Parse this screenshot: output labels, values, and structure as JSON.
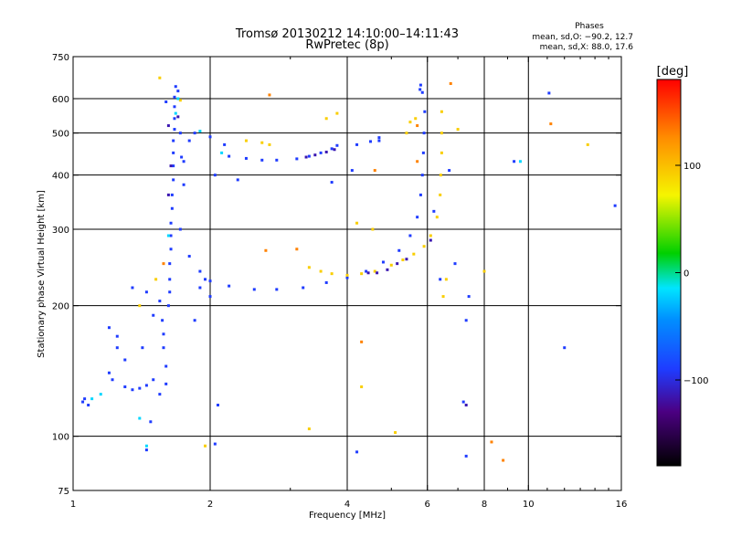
{
  "chart_data": {
    "type": "scatter",
    "title": "Tromsø 20130212 14:10:00–14:11:43",
    "subtitle": "RwPretec (8p)",
    "xlabel": "Frequency [MHz]",
    "ylabel": "Stationary phase Virtual Height [km]",
    "x_scale": "log",
    "y_scale": "log",
    "xlim": [
      1,
      16
    ],
    "ylim": [
      75,
      750
    ],
    "x_ticks": [
      1,
      2,
      4,
      6,
      8,
      10,
      16
    ],
    "x_tick_labels": [
      "1",
      "2",
      "4",
      "6",
      "8",
      "10",
      "16"
    ],
    "x_gridlines": [
      2,
      4,
      6,
      8,
      10
    ],
    "y_ticks": [
      75,
      100,
      200,
      300,
      400,
      500,
      600,
      750
    ],
    "y_tick_labels": [
      "75",
      "100",
      "200",
      "300",
      "400",
      "500",
      "600",
      "750"
    ],
    "y_gridlines": [
      100,
      200,
      300,
      400,
      500,
      600
    ],
    "grid": true,
    "stats": {
      "heading": "Phases",
      "line_o": "mean, sd,O: −90.2, 12.7",
      "line_x": "mean, sd,X:  88.0, 17.6"
    },
    "colorbar": {
      "label": "[deg]",
      "range": [
        -180,
        180
      ],
      "ticks": [
        100,
        0,
        -100
      ],
      "tick_labels": [
        "100",
        "0",
        "−100"
      ]
    },
    "series": [
      {
        "phase": -90,
        "points": [
          [
            1.55,
            125
          ],
          [
            1.6,
            132
          ],
          [
            1.6,
            145
          ],
          [
            1.58,
            160
          ],
          [
            1.58,
            172
          ],
          [
            1.57,
            185
          ],
          [
            1.62,
            200
          ],
          [
            1.63,
            215
          ],
          [
            1.63,
            230
          ],
          [
            1.63,
            250
          ],
          [
            1.64,
            270
          ],
          [
            1.64,
            290
          ],
          [
            1.64,
            310
          ],
          [
            1.65,
            335
          ],
          [
            1.65,
            360
          ],
          [
            1.66,
            390
          ],
          [
            1.66,
            420
          ],
          [
            1.66,
            450
          ],
          [
            1.66,
            480
          ],
          [
            1.67,
            510
          ],
          [
            1.67,
            540
          ],
          [
            1.67,
            575
          ],
          [
            1.67,
            605
          ],
          [
            1.68,
            640
          ],
          [
            1.7,
            625
          ],
          [
            1.72,
            500
          ],
          [
            1.73,
            440
          ],
          [
            1.75,
            380
          ],
          [
            1.72,
            300
          ],
          [
            1.8,
            260
          ],
          [
            1.9,
            240
          ],
          [
            2.0,
            228
          ],
          [
            2.2,
            222
          ],
          [
            2.5,
            218
          ],
          [
            2.8,
            218
          ],
          [
            3.2,
            220
          ],
          [
            3.6,
            226
          ],
          [
            4.0,
            232
          ],
          [
            4.4,
            240
          ],
          [
            4.8,
            252
          ],
          [
            5.2,
            268
          ],
          [
            5.5,
            290
          ],
          [
            5.7,
            320
          ],
          [
            5.8,
            360
          ],
          [
            5.85,
            400
          ],
          [
            5.88,
            450
          ],
          [
            5.9,
            500
          ],
          [
            5.92,
            560
          ],
          [
            5.85,
            620
          ],
          [
            5.8,
            645
          ],
          [
            5.78,
            630
          ],
          [
            2.2,
            442
          ],
          [
            2.4,
            437
          ],
          [
            2.6,
            433
          ],
          [
            2.8,
            433
          ],
          [
            3.1,
            436
          ],
          [
            3.3,
            442
          ],
          [
            3.5,
            450
          ],
          [
            3.7,
            460
          ],
          [
            3.8,
            468
          ],
          [
            4.2,
            470
          ],
          [
            4.5,
            478
          ],
          [
            4.7,
            488
          ],
          [
            1.3,
            130
          ],
          [
            1.35,
            128
          ],
          [
            1.4,
            129
          ],
          [
            1.45,
            131
          ],
          [
            1.5,
            135
          ],
          [
            1.3,
            150
          ],
          [
            1.25,
            160
          ],
          [
            1.2,
            178
          ],
          [
            1.25,
            170
          ],
          [
            1.2,
            140
          ],
          [
            1.22,
            135
          ],
          [
            1.05,
            120
          ],
          [
            1.06,
            122
          ],
          [
            1.08,
            118
          ],
          [
            1.35,
            220
          ],
          [
            1.45,
            215
          ],
          [
            1.55,
            205
          ],
          [
            1.85,
            185
          ],
          [
            1.9,
            220
          ],
          [
            1.95,
            230
          ],
          [
            2.0,
            210
          ],
          [
            7.3,
            90
          ],
          [
            7.2,
            120
          ],
          [
            7.3,
            185
          ],
          [
            7.4,
            210
          ],
          [
            4.2,
            92
          ],
          [
            11.1,
            618
          ],
          [
            9.3,
            430
          ],
          [
            12.0,
            160
          ],
          [
            15.5,
            340
          ],
          [
            2.15,
            470
          ],
          [
            2.0,
            490
          ],
          [
            1.85,
            500
          ],
          [
            1.8,
            480
          ],
          [
            2.05,
            400
          ],
          [
            2.3,
            390
          ],
          [
            1.45,
            93
          ],
          [
            2.05,
            96
          ],
          [
            1.48,
            108
          ],
          [
            1.42,
            160
          ],
          [
            1.5,
            190
          ],
          [
            2.08,
            118
          ],
          [
            4.1,
            410
          ],
          [
            3.7,
            385
          ],
          [
            4.7,
            480
          ],
          [
            6.2,
            330
          ],
          [
            6.7,
            410
          ],
          [
            6.9,
            250
          ],
          [
            6.4,
            230
          ],
          [
            1.6,
            590
          ],
          [
            1.75,
            430
          ]
        ]
      },
      {
        "phase": 92,
        "points": [
          [
            2.4,
            480
          ],
          [
            2.6,
            475
          ],
          [
            2.7,
            470
          ],
          [
            3.3,
            245
          ],
          [
            3.5,
            240
          ],
          [
            3.7,
            237
          ],
          [
            4.0,
            235
          ],
          [
            4.3,
            237
          ],
          [
            4.6,
            240
          ],
          [
            5.0,
            248
          ],
          [
            5.3,
            255
          ],
          [
            5.6,
            263
          ],
          [
            5.9,
            274
          ],
          [
            6.1,
            290
          ],
          [
            6.3,
            320
          ],
          [
            6.4,
            360
          ],
          [
            6.42,
            400
          ],
          [
            6.45,
            450
          ],
          [
            6.45,
            500
          ],
          [
            6.45,
            560
          ],
          [
            5.5,
            530
          ],
          [
            5.4,
            500
          ],
          [
            5.65,
            540
          ],
          [
            6.6,
            230
          ],
          [
            1.55,
            670
          ],
          [
            1.72,
            595
          ],
          [
            3.3,
            104
          ],
          [
            4.2,
            310
          ],
          [
            4.55,
            300
          ],
          [
            7.0,
            510
          ],
          [
            8.0,
            240
          ],
          [
            13.5,
            470
          ],
          [
            5.1,
            102
          ],
          [
            4.3,
            130
          ],
          [
            6.5,
            210
          ],
          [
            3.8,
            555
          ],
          [
            3.6,
            540
          ],
          [
            1.4,
            200
          ],
          [
            1.52,
            230
          ],
          [
            1.95,
            95
          ]
        ]
      },
      {
        "phase": 130,
        "points": [
          [
            2.7,
            612
          ],
          [
            11.2,
            525
          ],
          [
            8.8,
            88
          ],
          [
            5.7,
            430
          ],
          [
            3.1,
            270
          ],
          [
            2.65,
            268
          ],
          [
            4.6,
            410
          ],
          [
            6.75,
            650
          ],
          [
            5.7,
            520
          ],
          [
            4.3,
            165
          ],
          [
            1.58,
            250
          ],
          [
            8.3,
            97
          ]
        ]
      },
      {
        "phase": -20,
        "points": [
          [
            1.15,
            125
          ],
          [
            1.1,
            122
          ],
          [
            1.45,
            95
          ],
          [
            1.62,
            290
          ],
          [
            1.68,
            555
          ],
          [
            1.7,
            600
          ],
          [
            1.4,
            110
          ],
          [
            9.6,
            430
          ],
          [
            2.12,
            450
          ],
          [
            1.9,
            505
          ]
        ]
      },
      {
        "phase": -115,
        "points": [
          [
            3.25,
            440
          ],
          [
            3.4,
            445
          ],
          [
            3.6,
            452
          ],
          [
            3.75,
            458
          ],
          [
            4.45,
            238
          ],
          [
            4.65,
            238
          ],
          [
            4.9,
            242
          ],
          [
            5.15,
            250
          ],
          [
            5.4,
            256
          ],
          [
            7.3,
            118
          ],
          [
            1.62,
            360
          ],
          [
            1.64,
            420
          ],
          [
            1.62,
            520
          ],
          [
            1.7,
            545
          ],
          [
            6.1,
            283
          ]
        ]
      }
    ]
  }
}
